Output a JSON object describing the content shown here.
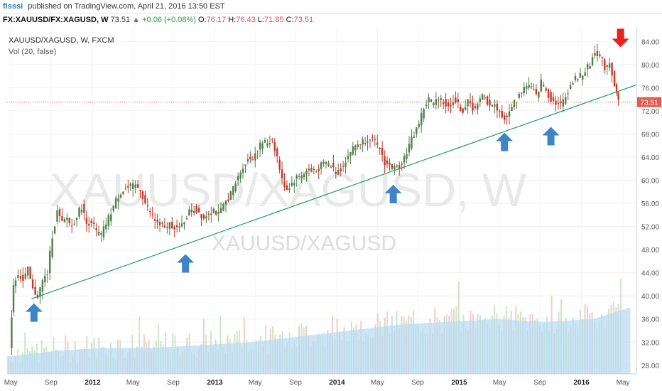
{
  "header": {
    "user": "fisssi",
    "published": "published on TradingView.com, April 21, 2016 13:50 EST",
    "symbol_full": "FX:XAUUSD/FX:XAGUSD, W",
    "last": "73.51",
    "change": "▲ +0.06 (+0.08%)",
    "o_label": "O:",
    "o": "76.17",
    "h_label": "H:",
    "h": "76.43",
    "l_label": "L:",
    "l": "71.85",
    "c_label": "C:",
    "c": "73.51"
  },
  "legend": {
    "symbol": "XAUUSD/XAGUSD, W, FXCM",
    "vol": "Vol (20, false)"
  },
  "watermark": {
    "big": "XAUUSD/XAGUSD, W",
    "small": "XAUUSD/XAGUSD"
  },
  "colors": {
    "up": "#4f7f4a",
    "down": "#c0392b",
    "trendline": "#1e9e6e",
    "arrow_up": "#3d85c6",
    "arrow_down": "#e8231f",
    "price_label_bg": "#e35b4f",
    "vol_bar": "#8ec8e8",
    "vol_ma": "#b9dcf3"
  },
  "chart_data": {
    "type": "candlestick",
    "title": "XAUUSD/XAGUSD, W, FXCM",
    "timeframe": "W",
    "x_ticks": [
      "May",
      "Sep",
      "2012",
      "May",
      "Sep",
      "2013",
      "May",
      "Sep",
      "2014",
      "May",
      "Sep",
      "2015",
      "May",
      "Sep",
      "2016",
      "May"
    ],
    "y_ticks": [
      28.0,
      32.0,
      36.0,
      40.0,
      44.0,
      48.0,
      52.0,
      56.0,
      60.0,
      64.0,
      68.0,
      72.0,
      76.0,
      80.0,
      84.0
    ],
    "y_tick_labels": [
      "28.00",
      "32.00",
      "36.00",
      "40.00",
      "44.00",
      "48.00",
      "52.00",
      "56.00",
      "60.00",
      "64.00",
      "68.00",
      "72.00",
      "76.00",
      "80.00",
      "84.00"
    ],
    "ylim": [
      26.5,
      86.5
    ],
    "xlim_years": [
      2011.3,
      2016.45
    ],
    "current_price": 73.51,
    "current_price_label": "73.51",
    "price_path": [
      [
        2011.33,
        31.5
      ],
      [
        2011.36,
        42.0
      ],
      [
        2011.4,
        44.0
      ],
      [
        2011.44,
        42.5
      ],
      [
        2011.48,
        44.5
      ],
      [
        2011.52,
        41.0
      ],
      [
        2011.56,
        40.0
      ],
      [
        2011.6,
        42.5
      ],
      [
        2011.64,
        44.0
      ],
      [
        2011.68,
        50.5
      ],
      [
        2011.72,
        54.5
      ],
      [
        2011.76,
        52.5
      ],
      [
        2011.8,
        53.5
      ],
      [
        2011.84,
        52.0
      ],
      [
        2011.88,
        54.0
      ],
      [
        2011.92,
        55.5
      ],
      [
        2011.96,
        52.5
      ],
      [
        2012.0,
        53.0
      ],
      [
        2012.04,
        51.0
      ],
      [
        2012.08,
        50.5
      ],
      [
        2012.12,
        52.5
      ],
      [
        2012.16,
        54.5
      ],
      [
        2012.2,
        56.5
      ],
      [
        2012.24,
        58.0
      ],
      [
        2012.28,
        58.5
      ],
      [
        2012.32,
        58.8
      ],
      [
        2012.36,
        59.0
      ],
      [
        2012.4,
        58.5
      ],
      [
        2012.44,
        56.0
      ],
      [
        2012.48,
        54.5
      ],
      [
        2012.52,
        53.0
      ],
      [
        2012.56,
        52.5
      ],
      [
        2012.6,
        51.5
      ],
      [
        2012.64,
        52.5
      ],
      [
        2012.68,
        52.0
      ],
      [
        2012.72,
        51.5
      ],
      [
        2012.76,
        53.0
      ],
      [
        2012.8,
        54.5
      ],
      [
        2012.84,
        55.0
      ],
      [
        2012.88,
        54.5
      ],
      [
        2012.92,
        53.5
      ],
      [
        2012.96,
        54.5
      ],
      [
        2013.0,
        55.0
      ],
      [
        2013.04,
        54.0
      ],
      [
        2013.08,
        55.5
      ],
      [
        2013.12,
        57.0
      ],
      [
        2013.16,
        58.5
      ],
      [
        2013.2,
        60.5
      ],
      [
        2013.24,
        62.5
      ],
      [
        2013.28,
        63.5
      ],
      [
        2013.32,
        64.0
      ],
      [
        2013.36,
        65.5
      ],
      [
        2013.4,
        66.5
      ],
      [
        2013.44,
        66.5
      ],
      [
        2013.48,
        67.0
      ],
      [
        2013.52,
        64.0
      ],
      [
        2013.56,
        60.0
      ],
      [
        2013.6,
        58.5
      ],
      [
        2013.64,
        59.5
      ],
      [
        2013.68,
        60.5
      ],
      [
        2013.72,
        61.0
      ],
      [
        2013.76,
        61.5
      ],
      [
        2013.8,
        62.0
      ],
      [
        2013.84,
        61.5
      ],
      [
        2013.88,
        62.5
      ],
      [
        2013.92,
        63.0
      ],
      [
        2013.96,
        62.5
      ],
      [
        2014.0,
        61.5
      ],
      [
        2014.04,
        62.0
      ],
      [
        2014.08,
        63.5
      ],
      [
        2014.12,
        65.0
      ],
      [
        2014.16,
        66.0
      ],
      [
        2014.2,
        66.5
      ],
      [
        2014.24,
        67.0
      ],
      [
        2014.28,
        67.5
      ],
      [
        2014.32,
        66.5
      ],
      [
        2014.36,
        65.5
      ],
      [
        2014.4,
        63.0
      ],
      [
        2014.44,
        62.5
      ],
      [
        2014.48,
        62.0
      ],
      [
        2014.52,
        62.5
      ],
      [
        2014.56,
        64.0
      ],
      [
        2014.6,
        66.0
      ],
      [
        2014.64,
        68.0
      ],
      [
        2014.68,
        70.0
      ],
      [
        2014.72,
        72.5
      ],
      [
        2014.76,
        74.0
      ],
      [
        2014.8,
        73.0
      ],
      [
        2014.84,
        74.5
      ],
      [
        2014.88,
        73.5
      ],
      [
        2014.92,
        72.5
      ],
      [
        2014.96,
        74.0
      ],
      [
        2015.0,
        73.0
      ],
      [
        2015.04,
        72.0
      ],
      [
        2015.08,
        73.5
      ],
      [
        2015.12,
        72.5
      ],
      [
        2015.16,
        73.0
      ],
      [
        2015.2,
        74.5
      ],
      [
        2015.24,
        73.5
      ],
      [
        2015.28,
        73.0
      ],
      [
        2015.32,
        72.5
      ],
      [
        2015.36,
        71.0
      ],
      [
        2015.4,
        70.5
      ],
      [
        2015.44,
        73.0
      ],
      [
        2015.48,
        74.0
      ],
      [
        2015.52,
        75.5
      ],
      [
        2015.56,
        76.5
      ],
      [
        2015.6,
        76.0
      ],
      [
        2015.64,
        74.5
      ],
      [
        2015.68,
        77.0
      ],
      [
        2015.72,
        75.5
      ],
      [
        2015.76,
        74.0
      ],
      [
        2015.8,
        73.5
      ],
      [
        2015.84,
        73.0
      ],
      [
        2015.88,
        74.5
      ],
      [
        2015.92,
        76.5
      ],
      [
        2015.96,
        77.5
      ],
      [
        2016.0,
        78.0
      ],
      [
        2016.04,
        79.0
      ],
      [
        2016.08,
        80.0
      ],
      [
        2016.12,
        82.5
      ],
      [
        2016.16,
        81.5
      ],
      [
        2016.2,
        79.5
      ],
      [
        2016.24,
        80.5
      ],
      [
        2016.28,
        76.5
      ],
      [
        2016.31,
        73.51
      ]
    ],
    "trendline": {
      "from": [
        2011.5,
        39.5
      ],
      "to": [
        2016.45,
        76.5
      ]
    },
    "volume_ma_path": [
      [
        2011.3,
        29.5
      ],
      [
        2011.7,
        30.5
      ],
      [
        2012.1,
        31.0
      ],
      [
        2012.5,
        31.0
      ],
      [
        2012.9,
        31.5
      ],
      [
        2013.3,
        32.0
      ],
      [
        2013.7,
        33.0
      ],
      [
        2014.1,
        34.0
      ],
      [
        2014.5,
        35.0
      ],
      [
        2014.9,
        35.5
      ],
      [
        2015.3,
        36.0
      ],
      [
        2015.7,
        35.5
      ],
      [
        2016.1,
        36.0
      ],
      [
        2016.4,
        38.0
      ]
    ],
    "support_arrows": [
      {
        "x": 2011.52,
        "y": 37.0
      },
      {
        "x": 2012.76,
        "y": 45.5
      },
      {
        "x": 2014.46,
        "y": 57.5
      },
      {
        "x": 2015.37,
        "y": 66.5
      },
      {
        "x": 2015.75,
        "y": 67.5
      }
    ],
    "drop_arrow": {
      "x": 2016.32,
      "y": 84.0
    }
  }
}
